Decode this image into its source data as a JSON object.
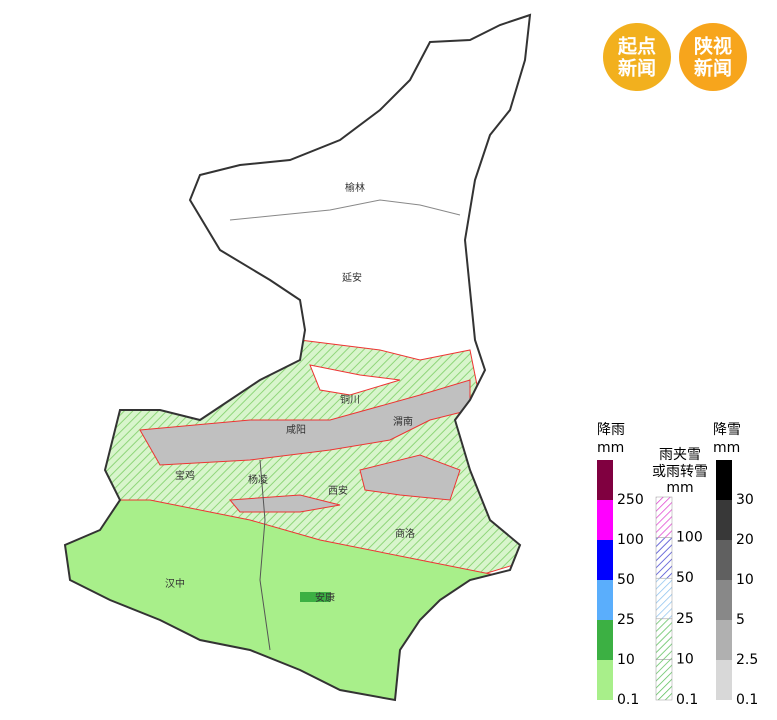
{
  "logos": [
    {
      "lines": [
        "起点",
        "新闻"
      ],
      "color": "#f2b01e"
    },
    {
      "lines": [
        "陕视",
        "新闻"
      ],
      "color": "#f7a51c"
    }
  ],
  "cities": [
    "榆林",
    "延安",
    "铜川",
    "渭南",
    "咸阳",
    "宝鸡",
    "杨凌",
    "西安",
    "商洛",
    "汉中",
    "安康"
  ],
  "legend": {
    "rain": {
      "title": "降雨",
      "unit": "mm",
      "labels": [
        "0.1",
        "10",
        "25",
        "50",
        "100",
        "250"
      ],
      "colors": [
        "#a8ef8a",
        "#3cb043",
        "#5aaefc",
        "#0000ff",
        "#ff00ff",
        "#800040"
      ]
    },
    "sleet": {
      "title": [
        "雨夹雪",
        "或雨转雪"
      ],
      "unit": "mm",
      "labels": [
        "0.1",
        "10",
        "25",
        "50",
        "100"
      ],
      "colors": [
        "#5cc05c",
        "#5cc05c",
        "#8fc4f0",
        "#4040d0",
        "#e040d0"
      ]
    },
    "snow": {
      "title": "降雪",
      "unit": "mm",
      "labels": [
        "0.1",
        "2.5",
        "5",
        "10",
        "20",
        "30"
      ],
      "colors": [
        "#d8d8d8",
        "#b0b0b0",
        "#888888",
        "#606060",
        "#383838",
        "#000000"
      ]
    }
  }
}
